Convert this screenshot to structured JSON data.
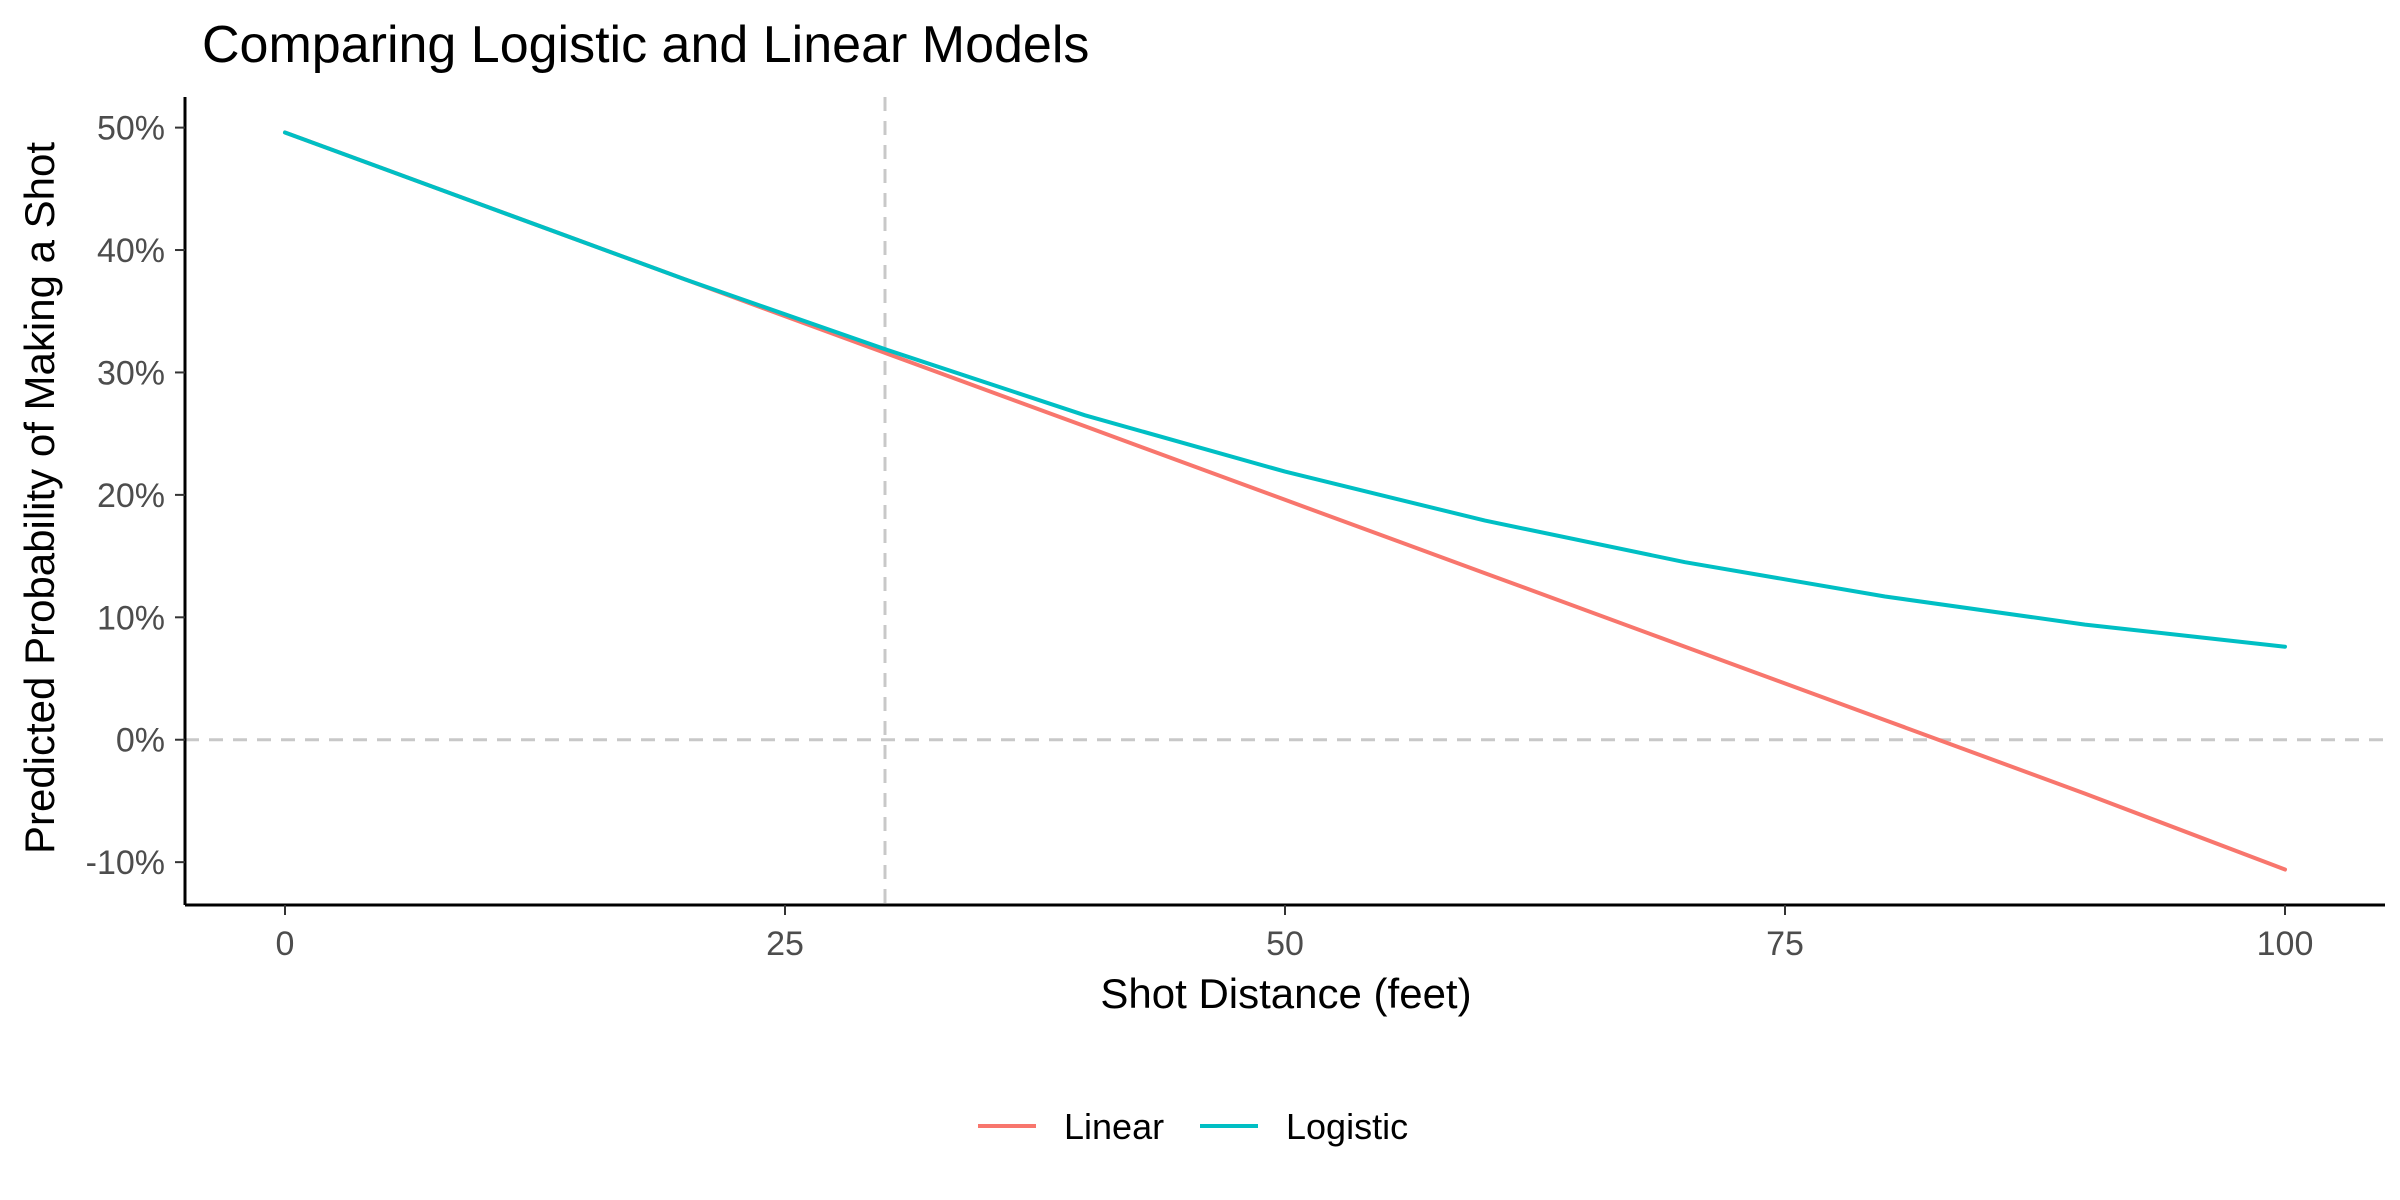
{
  "chart_data": {
    "type": "line",
    "title": "Comparing Logistic and Linear Models",
    "xlabel": "Shot Distance (feet)",
    "ylabel": "Predicted Probability of Making a Shot",
    "xlim": [
      -5,
      105
    ],
    "ylim": [
      -13.5,
      52.5
    ],
    "xticks": [
      0,
      25,
      50,
      75,
      100
    ],
    "xtick_labels": [
      "0",
      "25",
      "50",
      "75",
      "100"
    ],
    "yticks": [
      -10,
      0,
      10,
      20,
      30,
      40,
      50
    ],
    "ytick_labels": [
      "-10%",
      "0%",
      "10%",
      "20%",
      "30%",
      "40%",
      "50%"
    ],
    "reference_lines": [
      {
        "orientation": "vertical",
        "value": 30,
        "style": "dashed",
        "color": "#c8c8c8"
      },
      {
        "orientation": "horizontal",
        "value": 0,
        "style": "dashed",
        "color": "#c8c8c8"
      }
    ],
    "grid": false,
    "legend_position": "bottom",
    "x": [
      0,
      10,
      20,
      30,
      40,
      50,
      60,
      70,
      80,
      90,
      100
    ],
    "series": [
      {
        "name": "Linear",
        "color": "#F8766D",
        "values": [
          49.6,
          43.6,
          37.6,
          31.6,
          25.6,
          19.6,
          13.6,
          7.6,
          1.6,
          -4.4,
          -10.6
        ]
      },
      {
        "name": "Logistic",
        "color": "#00BFC4",
        "values": [
          49.6,
          43.6,
          37.6,
          31.9,
          26.5,
          21.9,
          17.9,
          14.5,
          11.7,
          9.4,
          7.6
        ]
      }
    ]
  }
}
